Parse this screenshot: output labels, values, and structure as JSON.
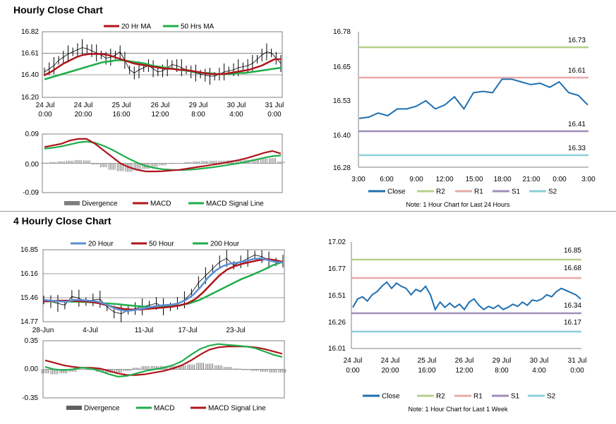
{
  "sections": [
    {
      "title": "Hourly Close Chart"
    },
    {
      "title": "4 Hourly Close Chart"
    }
  ],
  "colors": {
    "close": "#1f6fb0",
    "r2": "#b5d08e",
    "r1": "#e9a9a9",
    "s1": "#9f8fba",
    "s2": "#8ccfda",
    "ma_red": "#b0141a",
    "ma_green": "#1fae4a",
    "ma_blue": "#5b8ed6",
    "divergence": "#808080",
    "price": "#000000"
  },
  "chart_data": [
    {
      "id": "hourly-price",
      "type": "line",
      "legend": [
        "20 Hr MA",
        "50 Hrs MA"
      ],
      "y_ticks": [
        "16.82",
        "16.61",
        "16.40",
        "16.20"
      ],
      "ylim": [
        16.2,
        16.82
      ],
      "x_ticks": [
        [
          "24 Jul",
          "0:00"
        ],
        [
          "24 Jul",
          "20:00"
        ],
        [
          "25 Jul",
          "16:00"
        ],
        [
          "26 Jul",
          "12:00"
        ],
        [
          "29 Jul",
          "8:00"
        ],
        [
          "30 Jul",
          "4:00"
        ],
        [
          "31 Jul",
          "0:00"
        ]
      ],
      "price": [
        16.44,
        16.47,
        16.5,
        16.55,
        16.58,
        16.61,
        16.63,
        16.65,
        16.67,
        16.66,
        16.64,
        16.62,
        16.6,
        16.57,
        16.58,
        16.6,
        16.63,
        16.55,
        16.46,
        16.43,
        16.46,
        16.48,
        16.5,
        16.47,
        16.44,
        16.45,
        16.48,
        16.51,
        16.5,
        16.48,
        16.46,
        16.44,
        16.43,
        16.42,
        16.41,
        16.4,
        16.4,
        16.42,
        16.44,
        16.45,
        16.46,
        16.48,
        16.49,
        16.5,
        16.52,
        16.56,
        16.6,
        16.63,
        16.62,
        16.57,
        16.52
      ],
      "series": [
        {
          "name": "20 Hr MA",
          "values": [
            16.41,
            16.44,
            16.48,
            16.52,
            16.55,
            16.58,
            16.6,
            16.61,
            16.61,
            16.61,
            16.6,
            16.58,
            16.56,
            16.54,
            16.52,
            16.51,
            16.5,
            16.49,
            16.48,
            16.47,
            16.47,
            16.46,
            16.46,
            16.45,
            16.44,
            16.43,
            16.42,
            16.42,
            16.42,
            16.43,
            16.44,
            16.45,
            16.46,
            16.48,
            16.5,
            16.53,
            16.56,
            16.56
          ]
        },
        {
          "name": "50 Hrs MA",
          "values": [
            16.37,
            16.39,
            16.41,
            16.43,
            16.45,
            16.47,
            16.49,
            16.51,
            16.53,
            16.54,
            16.55,
            16.55,
            16.54,
            16.53,
            16.52,
            16.5,
            16.49,
            16.48,
            16.47,
            16.46,
            16.45,
            16.44,
            16.43,
            16.43,
            16.42,
            16.42,
            16.42,
            16.43,
            16.43,
            16.44,
            16.45,
            16.46,
            16.47,
            16.48
          ]
        }
      ]
    },
    {
      "id": "hourly-macd",
      "type": "line",
      "legend": [
        "Divergence",
        "MACD",
        "MACD Signal Line"
      ],
      "y_ticks": [
        "0.09",
        "0.00",
        "-0.09"
      ],
      "ylim": [
        -0.09,
        0.09
      ],
      "series": [
        {
          "name": "MACD",
          "values": [
            0.05,
            0.055,
            0.06,
            0.07,
            0.075,
            0.075,
            0.06,
            0.04,
            0.02,
            0.0,
            -0.012,
            -0.02,
            -0.025,
            -0.025,
            -0.024,
            -0.022,
            -0.02,
            -0.016,
            -0.012,
            -0.008,
            -0.004,
            0.0,
            0.005,
            0.01,
            0.016,
            0.024,
            0.032,
            0.038,
            0.03
          ]
        },
        {
          "name": "MACD Signal Line",
          "values": [
            0.045,
            0.048,
            0.052,
            0.058,
            0.064,
            0.067,
            0.063,
            0.054,
            0.042,
            0.028,
            0.014,
            0.002,
            -0.008,
            -0.014,
            -0.018,
            -0.02,
            -0.021,
            -0.02,
            -0.018,
            -0.015,
            -0.012,
            -0.008,
            -0.004,
            0.0,
            0.005,
            0.011,
            0.017,
            0.022,
            0.024
          ]
        },
        {
          "name": "Divergence",
          "values": [
            0.002,
            0.004,
            0.006,
            0.008,
            0.01,
            0.009,
            -0.004,
            -0.012,
            -0.02,
            -0.024,
            -0.026,
            -0.022,
            -0.017,
            -0.011,
            -0.006,
            -0.002,
            0.001,
            0.004,
            0.006,
            0.007,
            0.008,
            0.008,
            0.009,
            0.01,
            0.011,
            0.013,
            0.015,
            0.016,
            0.006
          ]
        }
      ]
    },
    {
      "id": "hourly-levels",
      "type": "line",
      "title_note": "Note: 1 Hour Chart for Last 24 Hours",
      "y_ticks": [
        "16.78",
        "16.65",
        "16.53",
        "16.40",
        "16.28"
      ],
      "ylim": [
        16.28,
        16.78
      ],
      "x_ticks": [
        "3:00",
        "6:00",
        "9:00",
        "12:00",
        "15:00",
        "18:00",
        "21:00",
        "0:00",
        "3:00"
      ],
      "levels": [
        {
          "name": "R2",
          "value": 16.73,
          "label": "16.73"
        },
        {
          "name": "R1",
          "value": 16.61,
          "label": "16.61"
        },
        {
          "name": "S1",
          "value": 16.41,
          "label": "16.41"
        },
        {
          "name": "S2",
          "value": 16.33,
          "label": "16.33"
        }
      ],
      "legend": [
        "Close",
        "R2",
        "R1",
        "S1",
        "S2"
      ],
      "series": [
        {
          "name": "Close",
          "values": [
            16.46,
            16.465,
            16.48,
            16.47,
            16.495,
            16.495,
            16.505,
            16.525,
            16.495,
            16.51,
            16.54,
            16.495,
            16.555,
            16.56,
            16.555,
            16.605,
            16.605,
            16.595,
            16.585,
            16.59,
            16.575,
            16.595,
            16.555,
            16.545,
            16.51
          ]
        }
      ]
    },
    {
      "id": "4hourly-price",
      "type": "line",
      "legend": [
        "20 Hour",
        "50 Hour",
        "200 Hour"
      ],
      "y_ticks": [
        "16.85",
        "16.16",
        "15.46",
        "14.77"
      ],
      "ylim": [
        14.77,
        16.85
      ],
      "x_ticks": [
        "28-Jun",
        "4-Jul",
        "11-Jul",
        "17-Jul",
        "23-Jul"
      ],
      "price": [
        15.4,
        15.35,
        15.3,
        15.25,
        15.5,
        15.45,
        15.35,
        15.4,
        15.42,
        15.2,
        15.05,
        15.0,
        15.1,
        15.15,
        15.2,
        15.25,
        15.3,
        15.2,
        15.2,
        15.3,
        15.4,
        15.6,
        15.9,
        16.1,
        16.3,
        16.5,
        16.6,
        16.4,
        16.5,
        16.6,
        16.7,
        16.65,
        16.55,
        16.5,
        16.52
      ],
      "series": [
        {
          "name": "20 Hour",
          "values": [
            15.4,
            15.38,
            15.36,
            15.35,
            15.4,
            15.4,
            15.38,
            15.36,
            15.3,
            15.2,
            15.12,
            15.08,
            15.1,
            15.14,
            15.18,
            15.22,
            15.25,
            15.26,
            15.3,
            15.4,
            15.55,
            15.78,
            16.05,
            16.25,
            16.38,
            16.45,
            16.48,
            16.52,
            16.58,
            16.6,
            16.55,
            16.5,
            16.48
          ]
        },
        {
          "name": "50 Hour",
          "values": [
            15.36,
            15.37,
            15.38,
            15.38,
            15.37,
            15.36,
            15.34,
            15.3,
            15.24,
            15.18,
            15.14,
            15.12,
            15.12,
            15.14,
            15.16,
            15.18,
            15.2,
            15.24,
            15.3,
            15.42,
            15.62,
            15.86,
            16.1,
            16.28,
            16.38,
            16.45,
            16.5,
            16.55,
            16.58,
            16.55,
            16.5
          ]
        },
        {
          "name": "200 Hour",
          "values": [
            15.36,
            15.36,
            15.36,
            15.35,
            15.34,
            15.32,
            15.3,
            15.28,
            15.25,
            15.22,
            15.2,
            15.2,
            15.21,
            15.24,
            15.3,
            15.4,
            15.55,
            15.7,
            15.85,
            16.0,
            16.12,
            16.25,
            16.4,
            16.5
          ]
        }
      ]
    },
    {
      "id": "4hourly-macd",
      "type": "line",
      "legend": [
        "Divergence",
        "MACD",
        "MACD Signal Line"
      ],
      "y_ticks": [
        "0.35",
        "0.00",
        "-0.35"
      ],
      "ylim": [
        -0.35,
        0.35
      ],
      "series": [
        {
          "name": "MACD",
          "values": [
            0.03,
            0.0,
            -0.01,
            0.0,
            0.02,
            0.01,
            -0.02,
            -0.06,
            -0.09,
            -0.08,
            -0.05,
            -0.02,
            0.0,
            0.02,
            0.05,
            0.1,
            0.18,
            0.25,
            0.29,
            0.31,
            0.3,
            0.29,
            0.28,
            0.26,
            0.22,
            0.18,
            0.15
          ]
        },
        {
          "name": "MACD Signal Line",
          "values": [
            0.11,
            0.08,
            0.05,
            0.03,
            0.02,
            0.02,
            0.01,
            -0.02,
            -0.05,
            -0.07,
            -0.07,
            -0.06,
            -0.04,
            -0.02,
            0.01,
            0.05,
            0.11,
            0.18,
            0.24,
            0.27,
            0.28,
            0.28,
            0.28,
            0.27,
            0.25,
            0.22,
            0.19
          ]
        },
        {
          "name": "Divergence",
          "values": [
            -0.05,
            -0.06,
            -0.05,
            -0.03,
            0.0,
            -0.01,
            -0.03,
            -0.04,
            -0.04,
            -0.02,
            0.02,
            0.04,
            0.04,
            0.04,
            0.04,
            0.05,
            0.06,
            0.08,
            0.07,
            0.05,
            0.03,
            0.01,
            -0.01,
            -0.02,
            -0.03,
            -0.04,
            -0.04
          ]
        }
      ]
    },
    {
      "id": "4hourly-levels",
      "type": "line",
      "title_note": "Note: 1 Hour Chart for Last 1 Week",
      "y_ticks": [
        "17.02",
        "16.77",
        "16.51",
        "16.26",
        "16.01"
      ],
      "ylim": [
        16.01,
        17.02
      ],
      "x_ticks": [
        [
          "24 Jul",
          "0:00"
        ],
        [
          "24 Jul",
          "20:00"
        ],
        [
          "25 Jul",
          "16:00"
        ],
        [
          "26 Jul",
          "12:00"
        ],
        [
          "29 Jul",
          "8:00"
        ],
        [
          "30 Jul",
          "4:00"
        ],
        [
          "31 Jul",
          "0:00"
        ]
      ],
      "levels": [
        {
          "name": "R2",
          "value": 16.85,
          "label": "16.85"
        },
        {
          "name": "R1",
          "value": 16.68,
          "label": "16.68"
        },
        {
          "name": "S1",
          "value": 16.34,
          "label": "16.34"
        },
        {
          "name": "S2",
          "value": 16.17,
          "label": "16.17"
        }
      ],
      "legend": [
        "Close",
        "R2",
        "R1",
        "S1",
        "S2"
      ],
      "series": [
        {
          "name": "Close",
          "values": [
            16.4,
            16.48,
            16.5,
            16.46,
            16.52,
            16.55,
            16.6,
            16.64,
            16.58,
            16.63,
            16.6,
            16.58,
            16.52,
            16.57,
            16.55,
            16.6,
            16.52,
            16.38,
            16.45,
            16.4,
            16.44,
            16.4,
            16.43,
            16.38,
            16.45,
            16.48,
            16.42,
            16.38,
            16.41,
            16.39,
            16.42,
            16.38,
            16.4,
            16.43,
            16.41,
            16.45,
            16.42,
            16.47,
            16.46,
            16.48,
            16.52,
            16.5,
            16.55,
            16.58,
            16.56,
            16.54,
            16.52,
            16.48
          ]
        }
      ]
    }
  ]
}
